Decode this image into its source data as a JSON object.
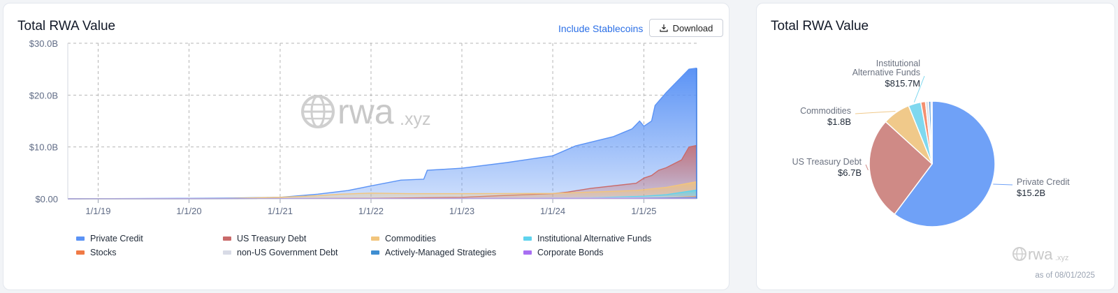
{
  "left_panel": {
    "title": "Total RWA Value",
    "toggle_label": "Include Stablecoins",
    "download_label": "Download",
    "watermark": {
      "main": "rwa",
      "suffix": ".xyz"
    }
  },
  "right_panel": {
    "title": "Total RWA Value",
    "watermark": {
      "main": "rwa",
      "suffix": ".xyz"
    },
    "as_of": "as of 08/01/2025"
  },
  "colors": {
    "private_credit": "#5b93f5",
    "us_treasury_debt": "#c96a6a",
    "commodities": "#f2c57c",
    "institutional_alternative_funds": "#5fd3ee",
    "stocks": "#f07a45",
    "non_us_government_debt": "#d8dbe6",
    "actively_managed_strategies": "#3f8ed1",
    "corporate_bonds": "#a86ff2",
    "grid": "#b5b5b5",
    "axis_text": "#5f6b85",
    "link": "#2b6fe6"
  },
  "chart_data": [
    {
      "type": "area",
      "title": "Total RWA Value",
      "x_ticks": [
        "1/1/19",
        "1/1/20",
        "1/1/21",
        "1/1/22",
        "1/1/23",
        "1/1/24",
        "1/1/25"
      ],
      "y_ticks": [
        "$0.00",
        "$10.0B",
        "$20.0B",
        "$30.0B"
      ],
      "ylim": [
        0,
        30
      ],
      "y_unit": "billions USD",
      "grid": true,
      "legend_placement": "bottom",
      "stacked": false,
      "series": [
        {
          "name": "Private Credit",
          "color": "#5b93f5",
          "points": [
            [
              "2018-09-01",
              0.0
            ],
            [
              "2019-06-01",
              0.05
            ],
            [
              "2020-01-01",
              0.1
            ],
            [
              "2020-06-01",
              0.15
            ],
            [
              "2021-01-01",
              0.3
            ],
            [
              "2021-06-01",
              0.9
            ],
            [
              "2021-10-01",
              1.6
            ],
            [
              "2022-01-01",
              2.5
            ],
            [
              "2022-05-01",
              3.6
            ],
            [
              "2022-08-01",
              3.8
            ],
            [
              "2022-08-15",
              5.5
            ],
            [
              "2023-01-01",
              5.9
            ],
            [
              "2023-07-01",
              7.0
            ],
            [
              "2024-01-01",
              8.3
            ],
            [
              "2024-04-01",
              10.2
            ],
            [
              "2024-09-01",
              12.0
            ],
            [
              "2024-11-15",
              13.5
            ],
            [
              "2024-12-15",
              15.0
            ],
            [
              "2025-01-01",
              14.0
            ],
            [
              "2025-02-01",
              15.0
            ],
            [
              "2025-02-15",
              18.0
            ],
            [
              "2025-04-01",
              20.5
            ],
            [
              "2025-06-01",
              23.5
            ],
            [
              "2025-07-01",
              25.0
            ],
            [
              "2025-08-01",
              25.2
            ]
          ]
        },
        {
          "name": "US Treasury Debt",
          "color": "#c96a6a",
          "points": [
            [
              "2018-09-01",
              0.0
            ],
            [
              "2021-01-01",
              0.05
            ],
            [
              "2022-01-01",
              0.1
            ],
            [
              "2023-01-01",
              0.3
            ],
            [
              "2023-06-01",
              0.6
            ],
            [
              "2024-01-01",
              1.0
            ],
            [
              "2024-03-01",
              1.3
            ],
            [
              "2024-06-01",
              2.0
            ],
            [
              "2024-12-01",
              3.0
            ],
            [
              "2025-01-01",
              4.0
            ],
            [
              "2025-02-01",
              4.5
            ],
            [
              "2025-03-01",
              5.5
            ],
            [
              "2025-04-01",
              6.0
            ],
            [
              "2025-06-01",
              7.5
            ],
            [
              "2025-07-01",
              10.0
            ],
            [
              "2025-08-01",
              10.3
            ]
          ]
        },
        {
          "name": "Commodities",
          "color": "#f2c57c",
          "points": [
            [
              "2018-09-01",
              0.0
            ],
            [
              "2020-06-01",
              0.05
            ],
            [
              "2021-01-01",
              0.3
            ],
            [
              "2021-06-01",
              0.6
            ],
            [
              "2021-09-01",
              0.9
            ],
            [
              "2022-01-01",
              1.1
            ],
            [
              "2022-06-01",
              1.0
            ],
            [
              "2023-01-01",
              1.0
            ],
            [
              "2024-01-01",
              1.05
            ],
            [
              "2024-12-01",
              1.6
            ],
            [
              "2025-04-01",
              2.2
            ],
            [
              "2025-08-01",
              3.3
            ]
          ]
        },
        {
          "name": "Institutional Alternative Funds",
          "color": "#5fd3ee",
          "points": [
            [
              "2018-09-01",
              0.0
            ],
            [
              "2023-06-01",
              0.05
            ],
            [
              "2024-06-01",
              0.2
            ],
            [
              "2025-01-01",
              0.5
            ],
            [
              "2025-04-01",
              0.8
            ],
            [
              "2025-08-01",
              1.7
            ]
          ]
        },
        {
          "name": "Stocks",
          "color": "#f07a45",
          "points": [
            [
              "2018-09-01",
              0.0
            ],
            [
              "2024-06-01",
              0.05
            ],
            [
              "2025-01-01",
              0.15
            ],
            [
              "2025-08-01",
              0.4
            ]
          ]
        },
        {
          "name": "non-US Government Debt",
          "color": "#d8dbe6",
          "points": [
            [
              "2018-09-01",
              0.0
            ],
            [
              "2023-01-01",
              0.05
            ],
            [
              "2025-08-01",
              0.3
            ]
          ]
        },
        {
          "name": "Actively-Managed Strategies",
          "color": "#3f8ed1",
          "points": [
            [
              "2018-09-01",
              0.0
            ],
            [
              "2024-06-01",
              0.05
            ],
            [
              "2025-08-01",
              0.2
            ]
          ]
        },
        {
          "name": "Corporate Bonds",
          "color": "#a86ff2",
          "points": [
            [
              "2018-09-01",
              0.0
            ],
            [
              "2025-08-01",
              0.1
            ]
          ]
        }
      ]
    },
    {
      "type": "pie",
      "title": "Total RWA Value",
      "unit": "billions USD",
      "slices": [
        {
          "label": "Private Credit",
          "value": 15.2,
          "display": "$15.2B",
          "color": "#6fa1f7",
          "labeled": true
        },
        {
          "label": "US Treasury Debt",
          "value": 6.7,
          "display": "$6.7B",
          "color": "#cf8a86",
          "labeled": true
        },
        {
          "label": "Commodities",
          "value": 1.8,
          "display": "$1.8B",
          "color": "#f0c98a",
          "labeled": true
        },
        {
          "label": "Institutional Alternative Funds",
          "value": 0.8157,
          "display": "$815.7M",
          "color": "#7fd8ef",
          "labeled": true
        },
        {
          "label": "Stocks",
          "value": 0.3,
          "display": "",
          "color": "#f49070",
          "labeled": false
        },
        {
          "label": "non-US Government Debt",
          "value": 0.2,
          "display": "",
          "color": "#dfe2ea",
          "labeled": false
        },
        {
          "label": "Actively-Managed Strategies",
          "value": 0.15,
          "display": "",
          "color": "#5b9bd8",
          "labeled": false
        },
        {
          "label": "Corporate Bonds",
          "value": 0.08,
          "display": "",
          "color": "#b88cf4",
          "labeled": false
        }
      ]
    }
  ]
}
